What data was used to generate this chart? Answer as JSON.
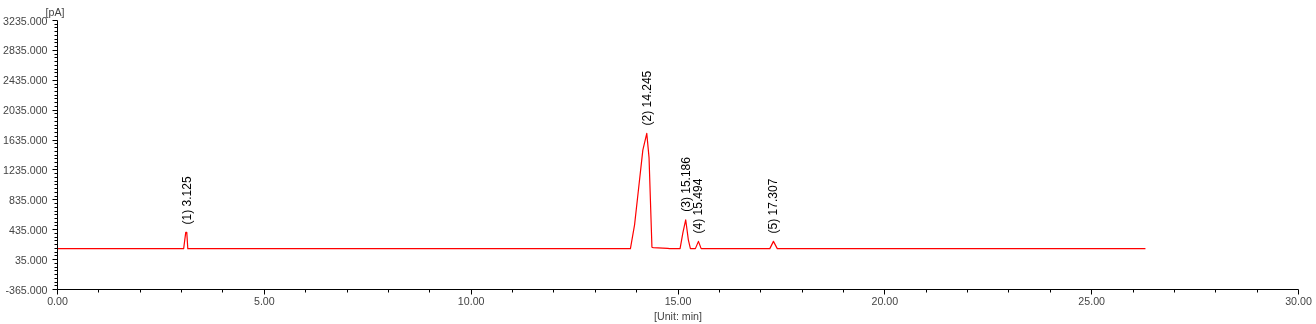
{
  "chart_data": {
    "type": "line",
    "xlabel": "[Unit: min]",
    "ylabel": "[pA]",
    "x": [
      0,
      3.05,
      3.1,
      3.125,
      3.15,
      3.2,
      13.85,
      13.95,
      14.05,
      14.15,
      14.245,
      14.3,
      14.37,
      14.4,
      14.75,
      14.8,
      15.05,
      15.12,
      15.186,
      15.25,
      15.3,
      15.42,
      15.494,
      15.56,
      17.22,
      17.307,
      17.4,
      26.3
    ],
    "series": [
      {
        "color": "#ff0000",
        "values": [
          182,
          182,
          399,
          399,
          182,
          182,
          182,
          500,
          1000,
          1500,
          1724,
          1400,
          200,
          195,
          185,
          182,
          182,
          400,
          568,
          300,
          182,
          182,
          279,
          182,
          182,
          279,
          182,
          182
        ]
      }
    ],
    "xlim": [
      0,
      30
    ],
    "ylim": [
      -365,
      3235
    ],
    "xticks": [
      {
        "value": 0,
        "label": "0.00"
      },
      {
        "value": 5,
        "label": "5.00"
      },
      {
        "value": 10,
        "label": "10.00"
      },
      {
        "value": 15,
        "label": "15.00"
      },
      {
        "value": 20,
        "label": "20.00"
      },
      {
        "value": 25,
        "label": "25.00"
      },
      {
        "value": 30,
        "label": "30.00"
      }
    ],
    "yticks": [
      {
        "value": -365,
        "label": "-365.000"
      },
      {
        "value": 35,
        "label": "35.000"
      },
      {
        "value": 435,
        "label": "435.000"
      },
      {
        "value": 835,
        "label": "835.000"
      },
      {
        "value": 1235,
        "label": "1235.000"
      },
      {
        "value": 1635,
        "label": "1635.000"
      },
      {
        "value": 2035,
        "label": "2035.000"
      },
      {
        "value": 2435,
        "label": "2435.000"
      },
      {
        "value": 2835,
        "label": "2835.000"
      },
      {
        "value": 3235,
        "label": "3235.000"
      }
    ],
    "annotations": [
      {
        "text": "(1) 3.125",
        "x": 3.125,
        "y": 399
      },
      {
        "text": "(2) 14.245",
        "x": 14.245,
        "y": 1724
      },
      {
        "text": "(3) 15.186",
        "x": 15.186,
        "y": 568
      },
      {
        "text": "(4) 15.494",
        "x": 15.494,
        "y": 279
      },
      {
        "text": "(5) 17.307",
        "x": 17.307,
        "y": 279
      }
    ],
    "grid": false
  }
}
